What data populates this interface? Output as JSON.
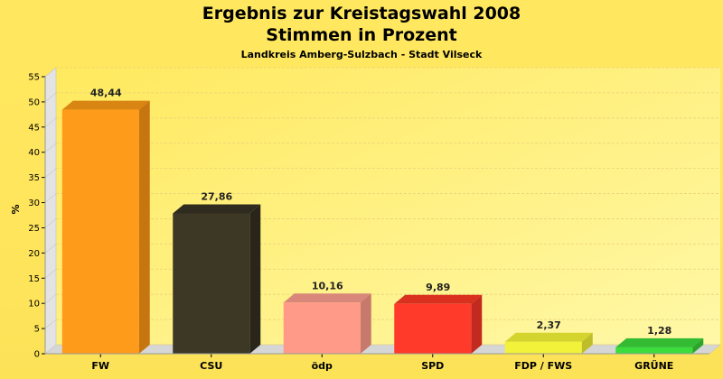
{
  "chart_data": {
    "type": "bar",
    "title_line1": "Ergebnis zur Kreistagswahl 2008",
    "title_line2": "Stimmen in Prozent",
    "subtitle": "Landkreis Amberg-Sulzbach - Stadt Vilseck",
    "ylabel": "%",
    "ylim": [
      0,
      55
    ],
    "yticks": [
      0,
      5,
      10,
      15,
      20,
      25,
      30,
      35,
      40,
      45,
      50,
      55
    ],
    "grid": true,
    "categories": [
      "FW",
      "CSU",
      "ödp",
      "SPD",
      "FDP / FWS",
      "GRÜNE"
    ],
    "values": [
      48.44,
      27.86,
      10.16,
      9.89,
      2.37,
      1.28
    ],
    "value_labels": [
      "48,44",
      "27,86",
      "10,16",
      "9,89",
      "2,37",
      "1,28"
    ],
    "colors": [
      "#ff9b1a",
      "#3d3726",
      "#ff9a88",
      "#ff3a2a",
      "#f2f23a",
      "#3ddc3d"
    ],
    "side_colors": [
      "#c77510",
      "#29251a",
      "#c77a6c",
      "#c22a1f",
      "#bebe2a",
      "#2aa52a"
    ],
    "top_colors": [
      "#d98514",
      "#2f2b1e",
      "#d9877a",
      "#d9301f",
      "#d4d42e",
      "#33bb33"
    ]
  }
}
